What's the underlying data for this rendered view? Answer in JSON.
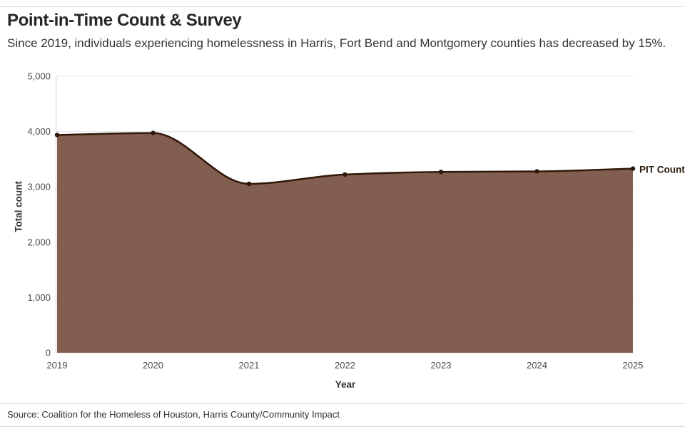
{
  "header": {
    "title": "Point-in-Time Count & Survey",
    "subtitle": "Since 2019, individuals experiencing homelessness in Harris, Fort Bend and Montgomery counties has decreased by 15%."
  },
  "chart_data": {
    "type": "area",
    "title": "Point-in-Time Count & Survey",
    "x": [
      "2019",
      "2020",
      "2021",
      "2022",
      "2023",
      "2024",
      "2025"
    ],
    "series": [
      {
        "name": "PIT Count",
        "values": [
          3938,
          3974,
          3055,
          3223,
          3270,
          3280,
          3330
        ]
      }
    ],
    "xlabel": "Year",
    "ylabel": "Total count",
    "ylim": [
      0,
      5000
    ],
    "yticks": [
      0,
      1000,
      2000,
      3000,
      4000,
      5000
    ],
    "ytick_labels": [
      "0",
      "1,000",
      "2,000",
      "3,000",
      "4,000",
      "5,000"
    ],
    "grid": true,
    "legend_position": "end-of-line",
    "colors": {
      "area_fill": "#7d594a",
      "line": "#30190a",
      "point": "#30190a",
      "gridline": "#e4e4e4",
      "axis_line": "#cfcfcf",
      "end_label": "#281b0e",
      "tick_text": "#4a4a4a"
    }
  },
  "footer": {
    "source": "Source: Coalition for the Homeless of Houston, Harris County/Community Impact"
  }
}
